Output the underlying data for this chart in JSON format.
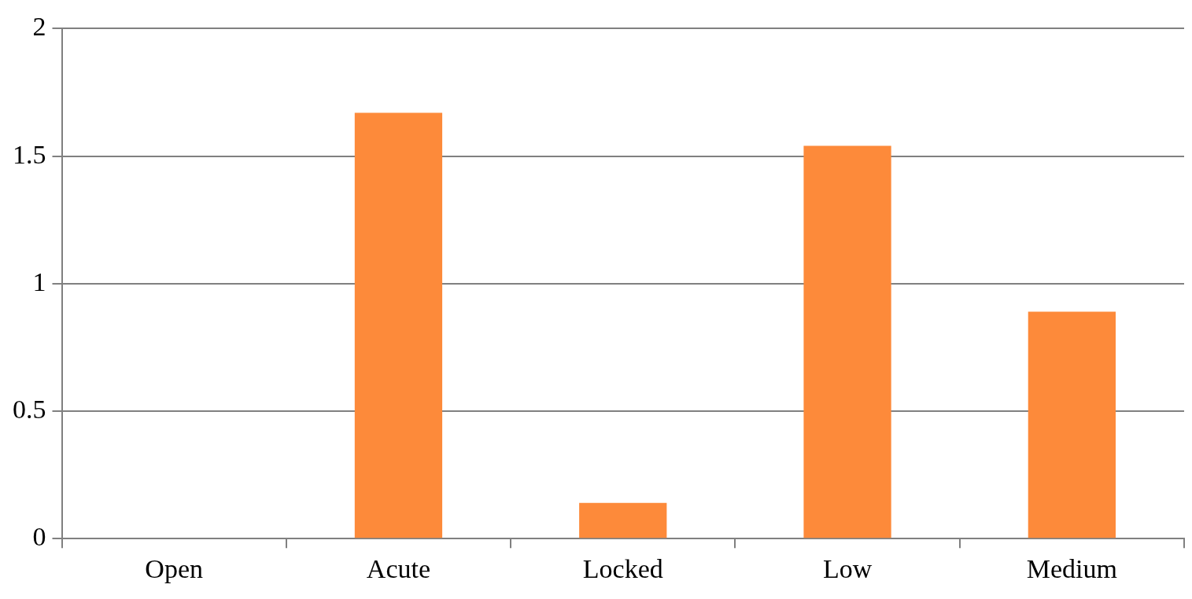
{
  "chart_data": {
    "type": "bar",
    "categories": [
      "Open",
      "Acute",
      "Locked",
      "Low",
      "Medium"
    ],
    "values": [
      0,
      1.67,
      0.14,
      1.54,
      0.89
    ],
    "color": "#fd8a3a",
    "ylim": [
      0,
      2
    ],
    "yticks": [
      0,
      0.5,
      1,
      1.5,
      2
    ],
    "grid": "y",
    "legend": false
  }
}
